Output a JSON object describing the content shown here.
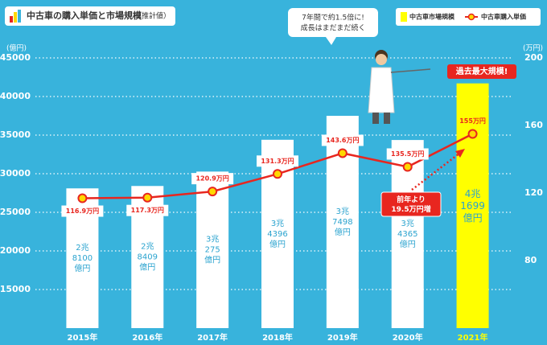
{
  "chart_data": {
    "type": "bar_line",
    "title": "中古車の購入単価と市場規模",
    "subtitle": "（推計値）",
    "y_label": "(億円)",
    "y2_label": "(万円)",
    "categories": [
      "2015年",
      "2016年",
      "2017年",
      "2018年",
      "2019年",
      "2020年",
      "2021年"
    ],
    "series": [
      {
        "name": "中古車市場規模",
        "type": "bar",
        "colors": [
          "#ffffff",
          "#ffffff",
          "#ffffff",
          "#ffffff",
          "#ffffff",
          "#ffffff",
          "#ffff00"
        ],
        "color": "#ffff00",
        "values": [
          28100,
          28409,
          30275,
          34396,
          37498,
          34365,
          41699
        ],
        "value_labels": [
          "2兆\n8100\n億円",
          "2兆\n8409\n億円",
          "3兆\n275\n億円",
          "3兆\n4396\n億円",
          "3兆\n7498\n億円",
          "3兆\n4365\n億円",
          "4兆\n1699\n億円"
        ]
      },
      {
        "name": "中古車購入単価",
        "type": "line",
        "axis": "y2",
        "color": "#e8261f",
        "values": [
          116.9,
          117.3,
          120.9,
          131.3,
          143.6,
          135.5,
          155
        ],
        "value_labels": [
          "116.9万円",
          "117.3万円",
          "120.9万円",
          "131.3万円",
          "143.6万円",
          "135.5万円",
          "155万円"
        ]
      }
    ],
    "ylim": [
      10000,
      46000
    ],
    "yticks": [
      15000,
      20000,
      25000,
      30000,
      35000,
      40000,
      45000
    ],
    "y2lim": [
      40,
      204.6
    ],
    "y2ticks": [
      80,
      120,
      160,
      200
    ],
    "grid": true,
    "annotations": [
      "7年間で約1.5倍に!\n成長はまだまだ続く",
      "過去最大規模!",
      "前年より\n19.5万円増"
    ]
  }
}
